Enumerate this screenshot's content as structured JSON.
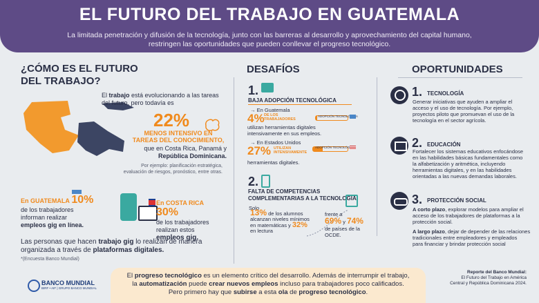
{
  "header": {
    "title": "EL FUTURO DEL TRABAJO EN GUATEMALA",
    "subtitle_l1": "La limitada penetración y difusión de la tecnología, junto con las barreras al desarrollo y aprovechamiento del capital humano,",
    "subtitle_l2": "restringen las oportunidades que pueden conllevar el progreso tecnológico."
  },
  "left": {
    "heading_l1": "¿CÓMO ES EL FUTURO",
    "heading_l2": "DEL TRABAJO?",
    "intro_a": "El ",
    "intro_b": "trabajo",
    "intro_c": " está evolucionando a las tareas",
    "intro_d": "del futuro, pero todavía es",
    "pct": "22%",
    "pct_sub_l1": "MENOS INTENSIVO EN",
    "pct_sub_l2": "TAREAS DEL CONOCIMIENTO,",
    "compare_l1": "que en Costa Rica, Panamá y",
    "compare_l2": "República Dominicana.",
    "example_l1": "Por ejemplo: planificación estratégica,",
    "example_l2": "evaluación de riesgos, pronóstico, entre otras.",
    "gt_country": "En GUATEMALA",
    "gt_pct": "10%",
    "gt_l1": "de los trabajadores",
    "gt_l2": "informan realizar",
    "gt_l3": "empleos gig en línea.",
    "cr_country": "En COSTA RICA",
    "cr_pct": "30%",
    "cr_l1": "de los trabajadores",
    "cr_l2": "realizan estos",
    "cr_l3": "empleos gig.",
    "gig_l1a": "Las personas que hacen ",
    "gig_l1b": "trabajo gig",
    "gig_l1c": " lo realizan de manera",
    "gig_l2a": "organizada a través de ",
    "gig_l2b": "plataformas digitales.",
    "source": "*(Encuesta Banco Mundial)"
  },
  "mid": {
    "heading": "DESAFÍOS",
    "c1_num": "1.",
    "c1_title": "BAJA ADOPCIÓN TECNOLÓGICA",
    "gt_label": "→ En Guatemala",
    "gt_pct": "4%",
    "gt_pct_l1": "DE LOS",
    "gt_pct_l2": "TRABAJADORES",
    "gt_bar_label": "ADOPCIÓN TECNOLÓGICA",
    "gt_l1": "utilizan herramientas digitales",
    "gt_l2": "intensivamente en sus empleos.",
    "us_label": "→ En Estados Unidos",
    "us_pct": "27%",
    "us_pct_l1": "UTILIZAN",
    "us_pct_l2": "INTENSIVAMENTE",
    "us_bar_label": "ADOPCIÓN TECNOLÓGICA",
    "us_l1": "herramientas digitales.",
    "c2_num": "2.",
    "c2_title_l1": "FALTA DE COMPETENCIAS",
    "c2_title_l2": "COMPLEMENTARIAS A LA TECNOLOGÍA",
    "solo": "Solo",
    "p13": "13%",
    "p13_l1": " de los alumnos",
    "p13_l2": "alcanzan niveles mínimos",
    "p13_l3": "en matemáticas y ",
    "p32": "32%",
    "p13_l4": "en lectura",
    "frente": "frente a",
    "p69": "69%",
    "y": " y ",
    "p74": "74%",
    "ocde_l1": "de países de la",
    "ocde_l2": "OCDE."
  },
  "right": {
    "heading": "OPORTUNIDADES",
    "o1_num": "1.",
    "o1_title": "TECNOLOGÍA",
    "o1_l1": "Generar iniciativas que ayuden a ampliar el",
    "o1_l2": "acceso y el uso de tecnología. Por ejemplo,",
    "o1_l3": "proyectos piloto que promuevan el uso de la",
    "o1_l4": "tecnología en el sector agrícola.",
    "o2_num": "2.",
    "o2_title": "EDUCACIÓN",
    "o2_l1": "Fortalecer los sistemas educativos enfocándose",
    "o2_l2": "en las habilidades básicas fundamentales como",
    "o2_l3": "la alfabetización y aritmética, incluyendo",
    "o2_l4": "herramientas digitales, y en las habilidades",
    "o2_l5": "orientadas a las nuevas demandas laborales.",
    "o3_num": "3.",
    "o3_title": "PROTECCIÓN SOCIAL",
    "o3_a_b": "A corto plazo",
    "o3_a_l1": ", explorar modelos para ampliar el",
    "o3_a_l2": "acceso de los trabajadores de plataformas a la",
    "o3_a_l3": "protección social.",
    "o3_b_b": "A largo plazo",
    "o3_b_l1": ", dejar de depender de las relaciones",
    "o3_b_l2": "tradicionales entre empleadores y empleados",
    "o3_b_l3": "para financiar y brindar protección social",
    "report_l1": "Reporte del Banco Mundial:",
    "report_l2": "El Futuro del Trabajo en América",
    "report_l3": "Central y República Dominicana 2024."
  },
  "bottom": {
    "l1a": "El ",
    "l1b": "progreso tecnológico",
    "l1c": " es un elemento crítico del desarrollo.  Además de interrumpir el trabajo,",
    "l2a": "la ",
    "l2b": "automatización",
    "l2c": " puede ",
    "l2d": "crear nuevos empleos",
    "l2e": " incluso para trabajadores poco calificados.",
    "l3a": "Pero primero hay que ",
    "l3b": "subirse",
    "l3c": " a esta ",
    "l3d": "ola",
    "l3e": " de ",
    "l3f": "progreso tecnológico",
    "l3g": "."
  },
  "logo": {
    "name": "BANCO MUNDIAL",
    "tag": "BIRF • AIF | GRUPO BANCO MUNDIAL"
  },
  "colors": {
    "purple": "#5e4b86",
    "orange": "#f08a1d",
    "navy": "#2a2f45",
    "teal": "#3aa9a0"
  }
}
